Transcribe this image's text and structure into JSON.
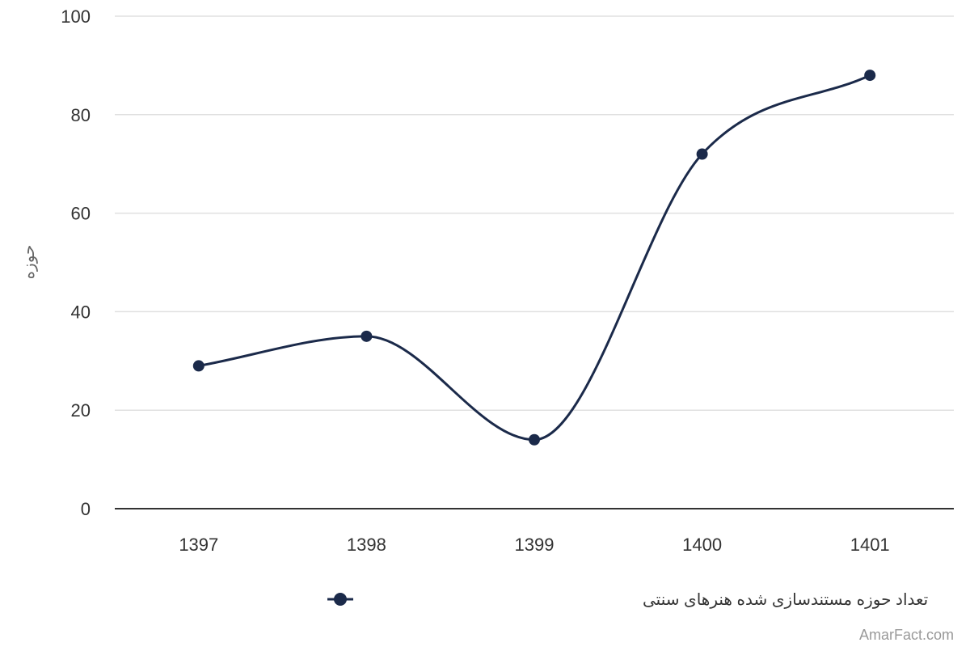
{
  "chart_data": {
    "type": "line",
    "categories": [
      "1397",
      "1398",
      "1399",
      "1400",
      "1401"
    ],
    "series": [
      {
        "name": "تعداد حوزه مستندسازی شده هنرهای سنتی",
        "values": [
          29,
          35,
          14,
          72,
          88
        ],
        "color": "#1b2a4a"
      }
    ],
    "xlabel": "",
    "ylabel": "حوزه",
    "ylim": [
      0,
      100
    ],
    "yticks": [
      "0",
      "20",
      "40",
      "60",
      "80",
      "100"
    ],
    "grid": true,
    "smooth": true,
    "markers": true,
    "legend": "bottom-center"
  },
  "credit": "AmarFact.com",
  "colors": {
    "series": "#1b2a4a",
    "grid": "#e0e0e0",
    "axis": "#333333"
  }
}
